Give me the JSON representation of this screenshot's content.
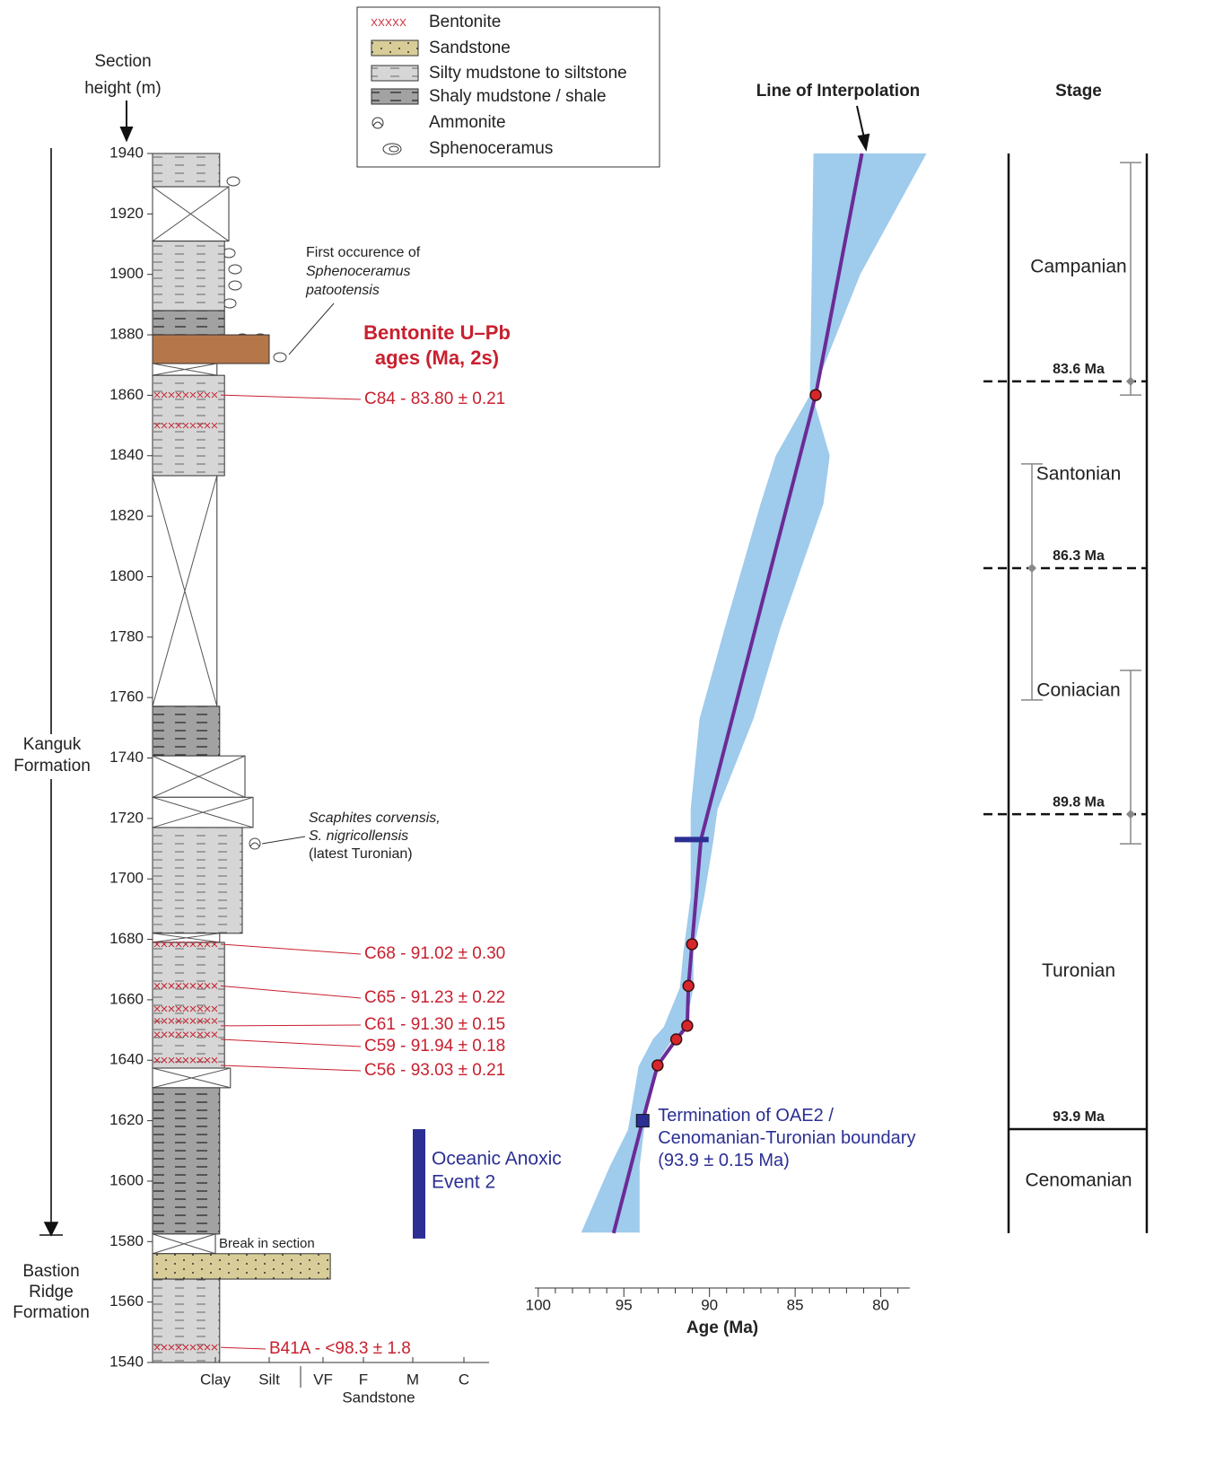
{
  "chart_data": {
    "type": "line",
    "ylabel": [
      "Section",
      "height (m)"
    ],
    "ylim": [
      1540,
      1940
    ],
    "yticks": [
      1540,
      1560,
      1580,
      1600,
      1620,
      1640,
      1660,
      1680,
      1700,
      1720,
      1740,
      1760,
      1780,
      1800,
      1820,
      1840,
      1860,
      1880,
      1900,
      1920,
      1940
    ],
    "xlabel": "Age (Ma)",
    "xlim": [
      100.2,
      78.3
    ],
    "xticks": [
      100,
      95,
      90,
      85,
      80
    ],
    "xminor": [
      99,
      98,
      97,
      96,
      94,
      93,
      92,
      91,
      89,
      88,
      87,
      86,
      84,
      83,
      82,
      81,
      79
    ],
    "line_label": "Line of Interpolation",
    "line": {
      "color": "#6b2b96",
      "x": [
        81.1,
        83.8,
        90.5,
        91.02,
        91.23,
        91.3,
        91.94,
        93.03,
        93.9,
        95.6
      ],
      "y": [
        1940,
        1860.1,
        1713,
        1678.4,
        1664.6,
        1651.4,
        1646.9,
        1638.3,
        1620,
        1582.8
      ]
    },
    "band": {
      "color": "#9fcbec",
      "y": [
        1940,
        1900,
        1860,
        1840,
        1824,
        1783,
        1753,
        1723,
        1712,
        1694,
        1676,
        1664,
        1651,
        1647,
        1638,
        1617,
        1605,
        1583
      ],
      "older": [
        83.93,
        84.03,
        84.14,
        86.13,
        87.02,
        89.11,
        90.58,
        91.1,
        91.1,
        91.1,
        91.52,
        91.73,
        92.67,
        93.3,
        94.14,
        94.76,
        95.81,
        97.49
      ],
      "younger": [
        77.33,
        81.2,
        84.0,
        82.98,
        83.35,
        85.86,
        87.43,
        89.53,
        89.79,
        90.31,
        90.94,
        90.94,
        91.4,
        92.15,
        93.19,
        93.82,
        94.08,
        94.08
      ]
    },
    "samples_title": [
      "Bentonite U–Pb",
      "ages (Ma, 2s)"
    ],
    "samples": [
      {
        "label": "C84 - 83.80 ± 0.21",
        "height": 1860.1,
        "age": 83.8
      },
      {
        "label": "C68 - 91.02 ± 0.30",
        "height": 1678.4,
        "age": 91.02
      },
      {
        "label": "C65 - 91.23 ± 0.22",
        "height": 1664.6,
        "age": 91.23
      },
      {
        "label": "C61 - 91.30 ± 0.15",
        "height": 1651.4,
        "age": 91.3
      },
      {
        "label": "C59 - 91.94 ± 0.18",
        "height": 1646.9,
        "age": 91.94
      },
      {
        "label": "C56 - 93.03 ± 0.21",
        "height": 1638.3,
        "age": 93.03
      },
      {
        "label": "B41A - <98.3 ± 1.8",
        "height": 1545
      }
    ],
    "boundary": {
      "label": [
        "Termination of OAE2 /",
        "Cenomanian-Turonian boundary",
        "(93.9 ± 0.15 Ma)"
      ],
      "age": 93.9,
      "height": 1620
    },
    "level_marker": {
      "height": 1713,
      "ages": [
        92.04,
        90.05
      ]
    },
    "oae2": {
      "label": [
        "Oceanic Anoxic",
        "Event 2"
      ],
      "range": [
        1581,
        1617.2
      ]
    },
    "stages": {
      "title": "Stage",
      "base": 1582.8,
      "names": [
        "Campanian",
        "Santonian",
        "Coniacian",
        "Turonian",
        "Cenomanian"
      ],
      "boundaries": [
        {
          "age": 83.6,
          "label": "83.6 Ma",
          "height": 1864.6,
          "range": [
            1860.1,
            1937.0
          ]
        },
        {
          "age": 86.3,
          "label": "86.3 Ma",
          "height": 1802.8,
          "range": [
            1759.2,
            1837.3
          ]
        },
        {
          "age": 89.8,
          "label": "89.8 Ma",
          "height": 1721.4,
          "range": [
            1711.6,
            1769.0
          ]
        },
        {
          "age": 93.9,
          "label": "93.9 Ma",
          "height": 1617.2
        }
      ]
    }
  },
  "legend": [
    "Bentonite",
    "Sandstone",
    "Silty mudstone to siltstone",
    "Shaly mudstone / shale",
    "Ammonite",
    "Sphenoceramus"
  ],
  "column": {
    "grain_labels": [
      "Clay",
      "Silt",
      "VF",
      "F",
      "M",
      "C"
    ],
    "sandstone_label": "Sandstone",
    "beds": [
      {
        "top": 1940,
        "base": 1929,
        "lith": 2,
        "grain": 0.08
      },
      {
        "top": 1929,
        "base": 1911,
        "lith": null,
        "grain": 0.25
      },
      {
        "top": 1911,
        "base": 1888,
        "lith": 2,
        "grain": 0.17
      },
      {
        "top": 1888,
        "base": 1880,
        "lith": 3,
        "grain": 0.17
      },
      {
        "top": 1880,
        "base": 1870.5,
        "lith": 1,
        "grain": 1,
        "color": "#b5764a"
      },
      {
        "top": 1870.5,
        "base": 1866.6,
        "lith": null,
        "grain": 0.03
      },
      {
        "top": 1866.6,
        "base": 1833.4,
        "lith": 2,
        "grain": 0.17
      },
      {
        "top": 1833.4,
        "base": 1757.1,
        "lith": null,
        "grain": 0.03
      },
      {
        "top": 1757.1,
        "base": 1740.7,
        "lith": 3,
        "grain": 0.08
      },
      {
        "top": 1740.7,
        "base": 1727,
        "lith": null,
        "grain": 0.55
      },
      {
        "top": 1727,
        "base": 1717,
        "lith": null,
        "grain": 0.7
      },
      {
        "top": 1717,
        "base": 1682,
        "lith": 2,
        "grain": 0.5
      },
      {
        "top": 1682,
        "base": 1679,
        "lith": null,
        "grain": 0.08
      },
      {
        "top": 1679,
        "base": 1637.4,
        "lith": 2,
        "grain": 0.17
      },
      {
        "top": 1637.4,
        "base": 1630.9,
        "lith": null,
        "grain": 0.28
      },
      {
        "top": 1630.9,
        "base": 1582.5,
        "lith": 3,
        "grain": 0.08
      },
      {
        "top": 1582.5,
        "base": 1576,
        "lith": null,
        "grain": 0.0
      },
      {
        "top": 1576,
        "base": 1567.6,
        "lith": 1,
        "grain": 2.18
      },
      {
        "top": 1567.6,
        "base": 1540,
        "lith": 2,
        "grain": 0.08
      }
    ],
    "bentonite_levels": [
      1860.1,
      1850,
      1678.4,
      1664.6,
      1657,
      1653,
      1648.5,
      1640,
      1545
    ]
  },
  "formations": {
    "kanguk": [
      "Kanguk",
      "Formation"
    ],
    "bastion": [
      "Bastion",
      "Ridge",
      "Formation"
    ]
  },
  "annotations": {
    "first_occurrence": [
      "First occurence of",
      "Sphenoceramus",
      "patootensis"
    ],
    "scaphites": [
      "Scaphites corvensis,",
      "S. nigricollensis",
      "(latest Turonian)"
    ],
    "break": "Break in section"
  }
}
